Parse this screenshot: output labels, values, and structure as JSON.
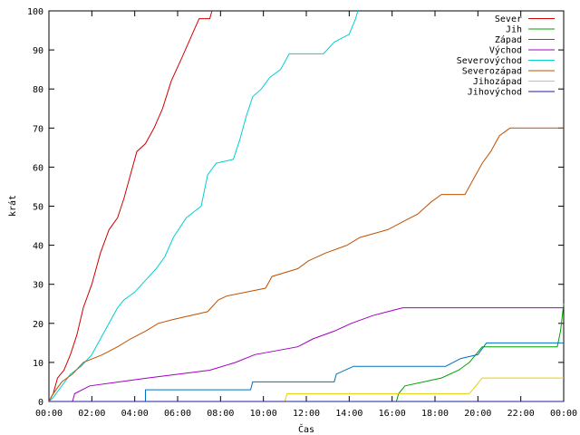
{
  "chart_data": {
    "type": "line",
    "title": "",
    "xlabel": "Čas",
    "ylabel": "krát",
    "xlim": [
      0,
      24
    ],
    "ylim": [
      0,
      100
    ],
    "x_ticks": [
      {
        "value": 0,
        "label": "00:00"
      },
      {
        "value": 2,
        "label": "02:00"
      },
      {
        "value": 4,
        "label": "04:00"
      },
      {
        "value": 6,
        "label": "06:00"
      },
      {
        "value": 8,
        "label": "08:00"
      },
      {
        "value": 10,
        "label": "10:00"
      },
      {
        "value": 12,
        "label": "12:00"
      },
      {
        "value": 14,
        "label": "14:00"
      },
      {
        "value": 16,
        "label": "16:00"
      },
      {
        "value": 18,
        "label": "18:00"
      },
      {
        "value": 20,
        "label": "20:00"
      },
      {
        "value": 22,
        "label": "22:00"
      },
      {
        "value": 24,
        "label": "00:00"
      }
    ],
    "y_ticks": [
      0,
      10,
      20,
      30,
      40,
      50,
      60,
      70,
      80,
      90,
      100
    ],
    "grid": false,
    "legend": "top-right",
    "series": [
      {
        "name": "Sever",
        "color": "#d00000",
        "points": [
          [
            0,
            0
          ],
          [
            0.2,
            2
          ],
          [
            0.4,
            6
          ],
          [
            0.7,
            8
          ],
          [
            1.0,
            12
          ],
          [
            1.3,
            17
          ],
          [
            1.6,
            24
          ],
          [
            2.0,
            30
          ],
          [
            2.4,
            38
          ],
          [
            2.8,
            44
          ],
          [
            3.2,
            47
          ],
          [
            3.5,
            52
          ],
          [
            3.8,
            58
          ],
          [
            4.1,
            64
          ],
          [
            4.5,
            66
          ],
          [
            4.9,
            70
          ],
          [
            5.3,
            75
          ],
          [
            5.7,
            82
          ],
          [
            6.2,
            88
          ],
          [
            6.6,
            93
          ],
          [
            7.0,
            98
          ],
          [
            7.5,
            98
          ],
          [
            7.6,
            100
          ]
        ]
      },
      {
        "name": "Jih",
        "color": "#00a000",
        "points": [
          [
            0,
            0
          ],
          [
            16.2,
            0
          ],
          [
            16.3,
            2
          ],
          [
            16.6,
            4
          ],
          [
            18.3,
            6
          ],
          [
            19.1,
            8
          ],
          [
            19.6,
            10
          ],
          [
            19.9,
            12
          ],
          [
            20.2,
            14
          ],
          [
            23.7,
            14
          ],
          [
            23.85,
            18
          ],
          [
            24,
            25
          ]
        ]
      },
      {
        "name": "Západ",
        "color": "#0070c0",
        "points": [
          [
            0,
            0
          ],
          [
            4.5,
            0
          ],
          [
            4.5,
            3
          ],
          [
            9.4,
            3
          ],
          [
            9.5,
            5
          ],
          [
            13.3,
            5
          ],
          [
            13.4,
            7
          ],
          [
            14.2,
            9
          ],
          [
            18.5,
            9
          ],
          [
            19.2,
            11
          ],
          [
            20.0,
            12
          ],
          [
            20.4,
            15
          ],
          [
            24,
            15
          ]
        ]
      },
      {
        "name": "Východ",
        "color": "#a000c0",
        "points": [
          [
            0,
            0
          ],
          [
            1.1,
            0
          ],
          [
            1.2,
            2
          ],
          [
            1.9,
            4
          ],
          [
            4.6,
            6
          ],
          [
            7.5,
            8
          ],
          [
            8.7,
            10
          ],
          [
            9.6,
            12
          ],
          [
            11.6,
            14
          ],
          [
            12.3,
            16
          ],
          [
            13.3,
            18
          ],
          [
            14.1,
            20
          ],
          [
            15.1,
            22
          ],
          [
            15.8,
            23
          ],
          [
            16.5,
            24
          ],
          [
            24,
            24
          ]
        ]
      },
      {
        "name": "Severovýchod",
        "color": "#00d0d0",
        "points": [
          [
            0,
            0
          ],
          [
            0.2,
            1
          ],
          [
            0.6,
            4
          ],
          [
            1.0,
            7
          ],
          [
            1.5,
            9
          ],
          [
            2.0,
            12
          ],
          [
            2.4,
            16
          ],
          [
            2.8,
            20
          ],
          [
            3.2,
            24
          ],
          [
            3.5,
            26
          ],
          [
            4.0,
            28
          ],
          [
            4.5,
            31
          ],
          [
            5.0,
            34
          ],
          [
            5.4,
            37
          ],
          [
            5.8,
            42
          ],
          [
            6.4,
            47
          ],
          [
            7.1,
            50
          ],
          [
            7.4,
            58
          ],
          [
            7.8,
            61
          ],
          [
            8.6,
            62
          ],
          [
            8.9,
            67
          ],
          [
            9.2,
            73
          ],
          [
            9.5,
            78
          ],
          [
            9.9,
            80
          ],
          [
            10.3,
            83
          ],
          [
            10.8,
            85
          ],
          [
            11.2,
            89
          ],
          [
            12.8,
            89
          ],
          [
            13.3,
            92
          ],
          [
            14.0,
            94
          ],
          [
            14.3,
            98
          ],
          [
            14.4,
            100
          ]
        ]
      },
      {
        "name": "Severozápad",
        "color": "#c05000",
        "points": [
          [
            0,
            0
          ],
          [
            0.2,
            2
          ],
          [
            0.6,
            5
          ],
          [
            1.1,
            7
          ],
          [
            1.6,
            10
          ],
          [
            2.5,
            12
          ],
          [
            3.2,
            14
          ],
          [
            3.8,
            16
          ],
          [
            4.5,
            18
          ],
          [
            5.1,
            20
          ],
          [
            5.8,
            21
          ],
          [
            7.4,
            23
          ],
          [
            7.9,
            26
          ],
          [
            8.3,
            27
          ],
          [
            10.1,
            29
          ],
          [
            10.4,
            32
          ],
          [
            11.6,
            34
          ],
          [
            12.1,
            36
          ],
          [
            12.9,
            38
          ],
          [
            13.9,
            40
          ],
          [
            14.5,
            42
          ],
          [
            15.8,
            44
          ],
          [
            16.5,
            46
          ],
          [
            17.2,
            48
          ],
          [
            17.8,
            51
          ],
          [
            18.3,
            53
          ],
          [
            19.4,
            53
          ],
          [
            19.8,
            57
          ],
          [
            20.2,
            61
          ],
          [
            20.6,
            64
          ],
          [
            21.0,
            68
          ],
          [
            21.5,
            70
          ],
          [
            24,
            70
          ]
        ]
      },
      {
        "name": "Jihozápad",
        "color": "#e8d000",
        "points": [
          [
            0,
            0
          ],
          [
            11.0,
            0
          ],
          [
            11.1,
            2
          ],
          [
            19.6,
            2
          ],
          [
            19.9,
            4
          ],
          [
            20.2,
            6
          ],
          [
            24,
            6
          ]
        ]
      },
      {
        "name": "Jihovýchod",
        "color": "#2020a0",
        "points": [
          [
            0,
            0
          ],
          [
            24,
            0
          ]
        ]
      }
    ]
  }
}
